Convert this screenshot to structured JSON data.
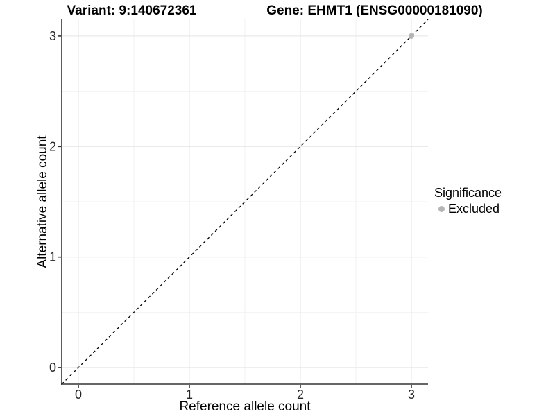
{
  "figure": {
    "background": "#ffffff"
  },
  "theme": {
    "grid_major_color": "#e4e4e4",
    "grid_minor_color": "#f2f2f2",
    "axis_line_color": "#333333",
    "tick_color": "#333333",
    "tick_label_color": "#262626",
    "text_color": "#000000"
  },
  "chart_data": {
    "type": "scatter",
    "titles": [
      "Variant: 9:140672361",
      "Gene: EHMT1 (ENSG00000181090)"
    ],
    "xlabel": "Reference allele count",
    "ylabel": "Alternative allele count",
    "xlim": [
      -0.15,
      3.15
    ],
    "ylim": [
      -0.15,
      3.15
    ],
    "x_ticks": [
      0,
      1,
      2,
      3
    ],
    "y_ticks": [
      0,
      1,
      2,
      3
    ],
    "x_minor_ticks": [
      0.5,
      1.5,
      2.5
    ],
    "y_minor_ticks": [
      0.5,
      1.5,
      2.5
    ],
    "grid": "major+minor",
    "reference_line": {
      "slope": 1,
      "intercept": 0,
      "style": "dashed",
      "color": "#000000"
    },
    "series": [
      {
        "name": "Excluded",
        "color": "#b5b5b5",
        "points": [
          {
            "x": 3,
            "y": 3
          }
        ]
      }
    ],
    "legend": {
      "title": "Significance",
      "position": "right",
      "items": [
        "Excluded"
      ]
    }
  }
}
